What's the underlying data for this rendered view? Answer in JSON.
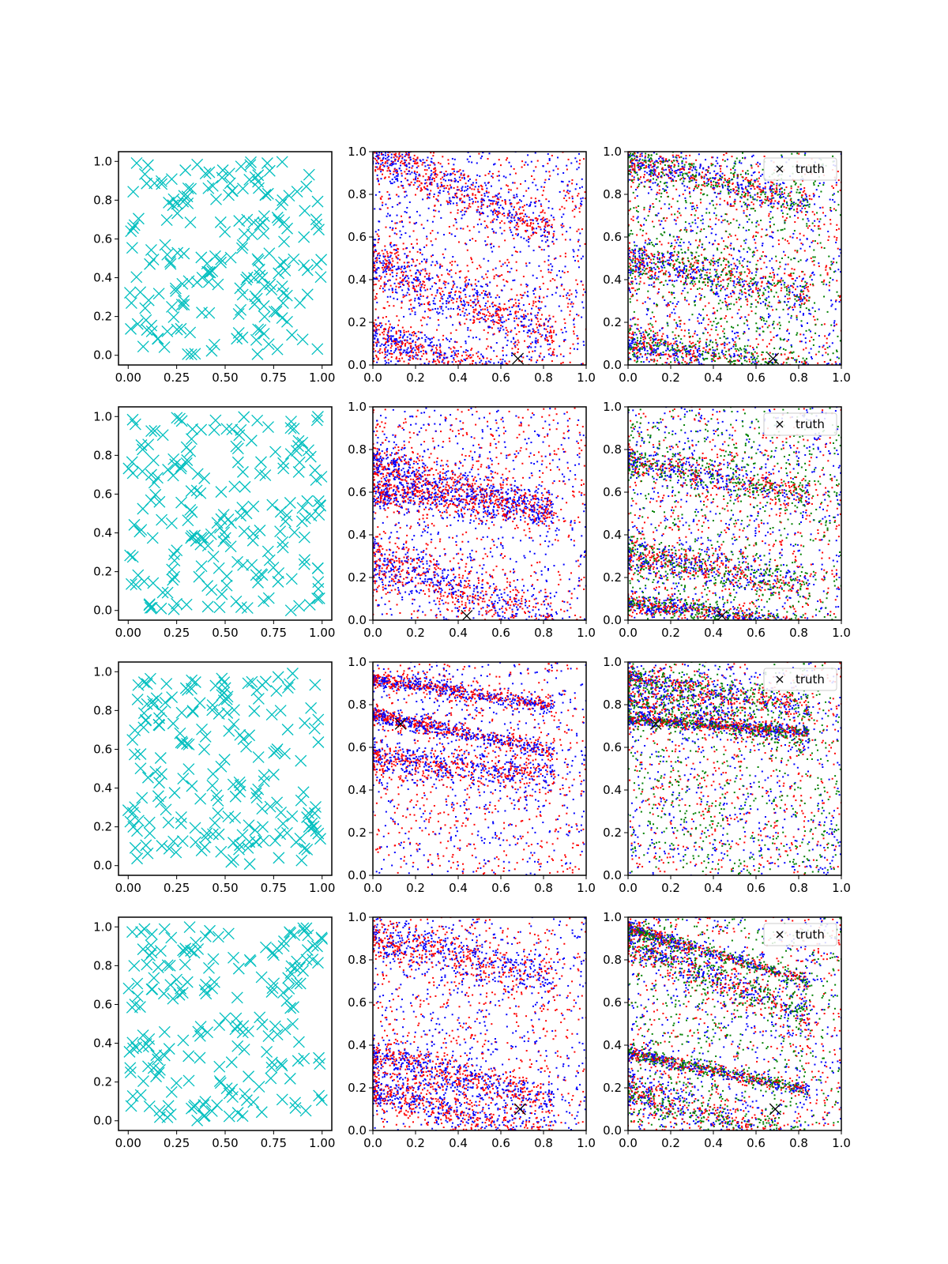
{
  "figure": {
    "rows": 4,
    "cols": 3,
    "background": "#ffffff"
  },
  "colors": {
    "samples": "#00bfbf",
    "red": "#ff0000",
    "blue": "#0000ff",
    "green": "#008000",
    "truth": "#000000"
  },
  "chart_data": [
    {
      "row": 1,
      "col": 1,
      "type": "scatter",
      "xlim": [
        -0.05,
        1.05
      ],
      "ylim": [
        -0.05,
        1.05
      ],
      "xticks": [
        0.0,
        0.25,
        0.5,
        0.75,
        1.0
      ],
      "xtick_labels": [
        "0.00",
        "0.25",
        "0.50",
        "0.75",
        "1.00"
      ],
      "yticks": [
        0.0,
        0.2,
        0.4,
        0.6,
        0.8,
        1.0
      ],
      "ytick_labels": [
        "0.0",
        "0.2",
        "0.4",
        "0.6",
        "0.8",
        "1.0"
      ],
      "marker": "x",
      "color": "cyan",
      "points": 200,
      "distribution": "uniform in [0,1]x[0,1]"
    },
    {
      "row": 1,
      "col": 2,
      "type": "scatter",
      "xlim": [
        0,
        1
      ],
      "ylim": [
        0,
        1
      ],
      "xticks": [
        0,
        0.2,
        0.4,
        0.6,
        0.8,
        1.0
      ],
      "xtick_labels": [
        "0.0",
        "0.2",
        "0.4",
        "0.6",
        "0.8",
        "1.0"
      ],
      "yticks": [
        0,
        0.2,
        0.4,
        0.6,
        0.8,
        1.0
      ],
      "ytick_labels": [
        "0.0",
        "0.2",
        "0.4",
        "0.6",
        "0.8",
        "1.0"
      ],
      "series_colors": [
        "red",
        "blue"
      ],
      "bands": [
        {
          "y0": 1.0,
          "slope": -0.45,
          "spread": 0.05
        },
        {
          "y0": 0.48,
          "slope": -0.4,
          "spread": 0.06
        },
        {
          "y0": 0.14,
          "slope": -0.35,
          "spread": 0.05
        }
      ],
      "truth": {
        "x": 0.68,
        "y": 0.03
      }
    },
    {
      "row": 1,
      "col": 3,
      "type": "scatter",
      "xlim": [
        0,
        1
      ],
      "ylim": [
        0,
        1
      ],
      "xticks": [
        0,
        0.2,
        0.4,
        0.6,
        0.8,
        1.0
      ],
      "xtick_labels": [
        "0.0",
        "0.2",
        "0.4",
        "0.6",
        "0.8",
        "1.0"
      ],
      "yticks": [
        0,
        0.2,
        0.4,
        0.6,
        0.8,
        1.0
      ],
      "ytick_labels": [
        "0.0",
        "0.2",
        "0.4",
        "0.6",
        "0.8",
        "1.0"
      ],
      "series_colors": [
        "red",
        "blue",
        "green"
      ],
      "bands": [
        {
          "y0": 0.96,
          "slope": -0.25,
          "spread": 0.04
        },
        {
          "y0": 0.5,
          "slope": -0.2,
          "spread": 0.05
        },
        {
          "y0": 0.1,
          "slope": -0.15,
          "spread": 0.04
        }
      ],
      "truth": {
        "x": 0.68,
        "y": 0.03
      },
      "legend": {
        "label": "truth",
        "position": "upper right"
      }
    },
    {
      "row": 2,
      "col": 1,
      "type": "scatter",
      "xlim": [
        -0.05,
        1.05
      ],
      "ylim": [
        -0.05,
        1.05
      ],
      "xticks": [
        0.0,
        0.25,
        0.5,
        0.75,
        1.0
      ],
      "xtick_labels": [
        "0.00",
        "0.25",
        "0.50",
        "0.75",
        "1.00"
      ],
      "yticks": [
        0.0,
        0.2,
        0.4,
        0.6,
        0.8,
        1.0
      ],
      "ytick_labels": [
        "0.0",
        "0.2",
        "0.4",
        "0.6",
        "0.8",
        "1.0"
      ],
      "marker": "x",
      "color": "cyan",
      "points": 200,
      "distribution": "uniform in [0,1]x[0,1]"
    },
    {
      "row": 2,
      "col": 2,
      "type": "scatter",
      "xlim": [
        0,
        1
      ],
      "ylim": [
        0,
        1
      ],
      "xticks": [
        0,
        0.2,
        0.4,
        0.6,
        0.8,
        1.0
      ],
      "xtick_labels": [
        "0.0",
        "0.2",
        "0.4",
        "0.6",
        "0.8",
        "1.0"
      ],
      "yticks": [
        0,
        0.2,
        0.4,
        0.6,
        0.8,
        1.0
      ],
      "ytick_labels": [
        "0.0",
        "0.2",
        "0.4",
        "0.6",
        "0.8",
        "1.0"
      ],
      "series_colors": [
        "red",
        "blue"
      ],
      "bands": [
        {
          "y0": 0.75,
          "slope": -0.3,
          "spread": 0.05
        },
        {
          "y0": 0.28,
          "slope": -0.35,
          "spread": 0.06
        },
        {
          "y0": 0.6,
          "slope": -0.1,
          "spread": 0.04
        }
      ],
      "truth": {
        "x": 0.44,
        "y": 0.02
      }
    },
    {
      "row": 2,
      "col": 3,
      "type": "scatter",
      "xlim": [
        0,
        1
      ],
      "ylim": [
        0,
        1
      ],
      "xticks": [
        0,
        0.2,
        0.4,
        0.6,
        0.8,
        1.0
      ],
      "xtick_labels": [
        "0.0",
        "0.2",
        "0.4",
        "0.6",
        "0.8",
        "1.0"
      ],
      "yticks": [
        0,
        0.2,
        0.4,
        0.6,
        0.8,
        1.0
      ],
      "ytick_labels": [
        "0.0",
        "0.2",
        "0.4",
        "0.6",
        "0.8",
        "1.0"
      ],
      "series_colors": [
        "red",
        "blue",
        "green"
      ],
      "bands": [
        {
          "y0": 0.08,
          "slope": -0.12,
          "spread": 0.025
        },
        {
          "y0": 0.75,
          "slope": -0.2,
          "spread": 0.04
        },
        {
          "y0": 0.3,
          "slope": -0.15,
          "spread": 0.04
        }
      ],
      "truth": {
        "x": 0.44,
        "y": 0.02
      },
      "legend": {
        "label": "truth",
        "position": "upper right"
      }
    },
    {
      "row": 3,
      "col": 1,
      "type": "scatter",
      "xlim": [
        -0.05,
        1.05
      ],
      "ylim": [
        -0.05,
        1.05
      ],
      "xticks": [
        0.0,
        0.25,
        0.5,
        0.75,
        1.0
      ],
      "xtick_labels": [
        "0.00",
        "0.25",
        "0.50",
        "0.75",
        "1.00"
      ],
      "yticks": [
        0.0,
        0.2,
        0.4,
        0.6,
        0.8,
        1.0
      ],
      "ytick_labels": [
        "0.0",
        "0.2",
        "0.4",
        "0.6",
        "0.8",
        "1.0"
      ],
      "marker": "x",
      "color": "cyan",
      "points": 200,
      "distribution": "uniform in [0,1]x[0,1]"
    },
    {
      "row": 3,
      "col": 2,
      "type": "scatter",
      "xlim": [
        0,
        1
      ],
      "ylim": [
        0,
        1
      ],
      "xticks": [
        0,
        0.2,
        0.4,
        0.6,
        0.8,
        1.0
      ],
      "xtick_labels": [
        "0.0",
        "0.2",
        "0.4",
        "0.6",
        "0.8",
        "1.0"
      ],
      "yticks": [
        0,
        0.2,
        0.4,
        0.6,
        0.8,
        1.0
      ],
      "ytick_labels": [
        "0.0",
        "0.2",
        "0.4",
        "0.6",
        "0.8",
        "1.0"
      ],
      "series_colors": [
        "red",
        "blue"
      ],
      "bands": [
        {
          "y0": 0.75,
          "slope": -0.2,
          "spread": 0.02
        },
        {
          "y0": 0.92,
          "slope": -0.15,
          "spread": 0.02
        },
        {
          "y0": 0.55,
          "slope": -0.1,
          "spread": 0.04
        }
      ],
      "truth": {
        "x": 0.13,
        "y": 0.71
      }
    },
    {
      "row": 3,
      "col": 3,
      "type": "scatter",
      "xlim": [
        0,
        1
      ],
      "ylim": [
        0,
        1
      ],
      "xticks": [
        0,
        0.2,
        0.4,
        0.6,
        0.8,
        1.0
      ],
      "xtick_labels": [
        "0.0",
        "0.2",
        "0.4",
        "0.6",
        "0.8",
        "1.0"
      ],
      "yticks": [
        0,
        0.2,
        0.4,
        0.6,
        0.8,
        1.0
      ],
      "ytick_labels": [
        "0.0",
        "0.2",
        "0.4",
        "0.6",
        "0.8",
        "1.0"
      ],
      "series_colors": [
        "red",
        "blue",
        "green"
      ],
      "bands": [
        {
          "y0": 0.73,
          "slope": -0.07,
          "spread": 0.012
        },
        {
          "y0": 0.82,
          "slope": -0.2,
          "spread": 0.04
        },
        {
          "y0": 0.92,
          "slope": -0.15,
          "spread": 0.03
        }
      ],
      "truth": {
        "x": 0.13,
        "y": 0.71
      },
      "legend": {
        "label": "truth",
        "position": "upper right"
      }
    },
    {
      "row": 4,
      "col": 1,
      "type": "scatter",
      "xlim": [
        -0.05,
        1.05
      ],
      "ylim": [
        -0.05,
        1.05
      ],
      "xticks": [
        0.0,
        0.25,
        0.5,
        0.75,
        1.0
      ],
      "xtick_labels": [
        "0.00",
        "0.25",
        "0.50",
        "0.75",
        "1.00"
      ],
      "yticks": [
        0.0,
        0.2,
        0.4,
        0.6,
        0.8,
        1.0
      ],
      "ytick_labels": [
        "0.0",
        "0.2",
        "0.4",
        "0.6",
        "0.8",
        "1.0"
      ],
      "marker": "x",
      "color": "cyan",
      "points": 200,
      "distribution": "uniform in [0,1]x[0,1]"
    },
    {
      "row": 4,
      "col": 2,
      "type": "scatter",
      "xlim": [
        0,
        1
      ],
      "ylim": [
        0,
        1
      ],
      "xticks": [
        0,
        0.2,
        0.4,
        0.6,
        0.8,
        1.0
      ],
      "xtick_labels": [
        "0.0",
        "0.2",
        "0.4",
        "0.6",
        "0.8",
        "1.0"
      ],
      "yticks": [
        0,
        0.2,
        0.4,
        0.6,
        0.8,
        1.0
      ],
      "ytick_labels": [
        "0.0",
        "0.2",
        "0.4",
        "0.6",
        "0.8",
        "1.0"
      ],
      "series_colors": [
        "red",
        "blue"
      ],
      "bands": [
        {
          "y0": 0.2,
          "slope": -0.3,
          "spread": 0.05
        },
        {
          "y0": 0.35,
          "slope": -0.25,
          "spread": 0.04
        },
        {
          "y0": 0.9,
          "slope": -0.2,
          "spread": 0.05
        }
      ],
      "truth": {
        "x": 0.69,
        "y": 0.1
      }
    },
    {
      "row": 4,
      "col": 3,
      "type": "scatter",
      "xlim": [
        0,
        1
      ],
      "ylim": [
        0,
        1
      ],
      "xticks": [
        0,
        0.2,
        0.4,
        0.6,
        0.8,
        1.0
      ],
      "xtick_labels": [
        "0.0",
        "0.2",
        "0.4",
        "0.6",
        "0.8",
        "1.0"
      ],
      "yticks": [
        0,
        0.2,
        0.4,
        0.6,
        0.8,
        1.0
      ],
      "ytick_labels": [
        "0.0",
        "0.2",
        "0.4",
        "0.6",
        "0.8",
        "1.0"
      ],
      "series_colors": [
        "red",
        "blue",
        "green"
      ],
      "bands": [
        {
          "y0": 0.95,
          "slope": -0.3,
          "spread": 0.015
        },
        {
          "y0": 0.88,
          "slope": -0.4,
          "spread": 0.04
        },
        {
          "y0": 0.36,
          "slope": -0.2,
          "spread": 0.015
        },
        {
          "y0": 0.2,
          "slope": -0.35,
          "spread": 0.05
        }
      ],
      "truth": {
        "x": 0.69,
        "y": 0.1
      },
      "legend": {
        "label": "truth",
        "position": "upper right"
      }
    }
  ]
}
